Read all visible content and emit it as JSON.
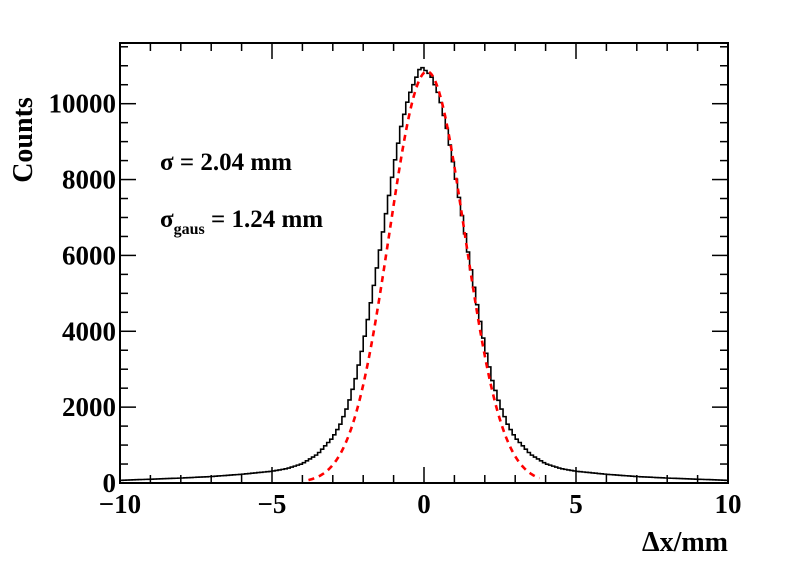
{
  "chart_data": {
    "type": "histogram",
    "xlabel": "Δx/mm",
    "ylabel": "Counts",
    "xlim": [
      -10,
      10
    ],
    "ylim": [
      0,
      11600
    ],
    "x_ticks": [
      "−10",
      "−5",
      "0",
      "5",
      "10"
    ],
    "y_ticks": [
      "0",
      "2000",
      "4000",
      "6000",
      "8000",
      "10000"
    ],
    "annotations": [
      {
        "name": "sigma",
        "symbol": "σ",
        "subscript": "",
        "text": " = 2.04 mm"
      },
      {
        "name": "sigma-gaus",
        "symbol": "σ",
        "subscript": "gaus",
        "text": " = 1.24 mm"
      }
    ],
    "series": [
      {
        "style": "step",
        "color": "#000000",
        "x": [
          -10,
          -9,
          -8,
          -7,
          -6,
          -5,
          -4.5,
          -4,
          -3.5,
          -3,
          -2.75,
          -2.5,
          -2.25,
          -2,
          -1.75,
          -1.5,
          -1.25,
          -1,
          -0.75,
          -0.5,
          -0.25,
          -0.1,
          0,
          0.1,
          0.25,
          0.5,
          0.75,
          1,
          1.25,
          1.5,
          1.75,
          2,
          2.25,
          2.5,
          2.75,
          3,
          3.5,
          4,
          4.5,
          5,
          6,
          7,
          8,
          9,
          10
        ],
        "y": [
          70,
          100,
          130,
          170,
          230,
          310,
          380,
          510,
          760,
          1200,
          1550,
          2050,
          2750,
          3650,
          4750,
          5900,
          7100,
          8300,
          9400,
          10200,
          10700,
          11000,
          10900,
          10850,
          10700,
          10200,
          9350,
          8250,
          7050,
          5850,
          4700,
          3600,
          2700,
          2050,
          1550,
          1200,
          760,
          510,
          380,
          310,
          230,
          170,
          130,
          100,
          70
        ]
      },
      {
        "style": "dashed",
        "color": "#ff0000",
        "function": "gaussian",
        "mean": 0.1,
        "amplitude": 10850,
        "x_range": [
          -3.8,
          3.8
        ]
      }
    ]
  }
}
